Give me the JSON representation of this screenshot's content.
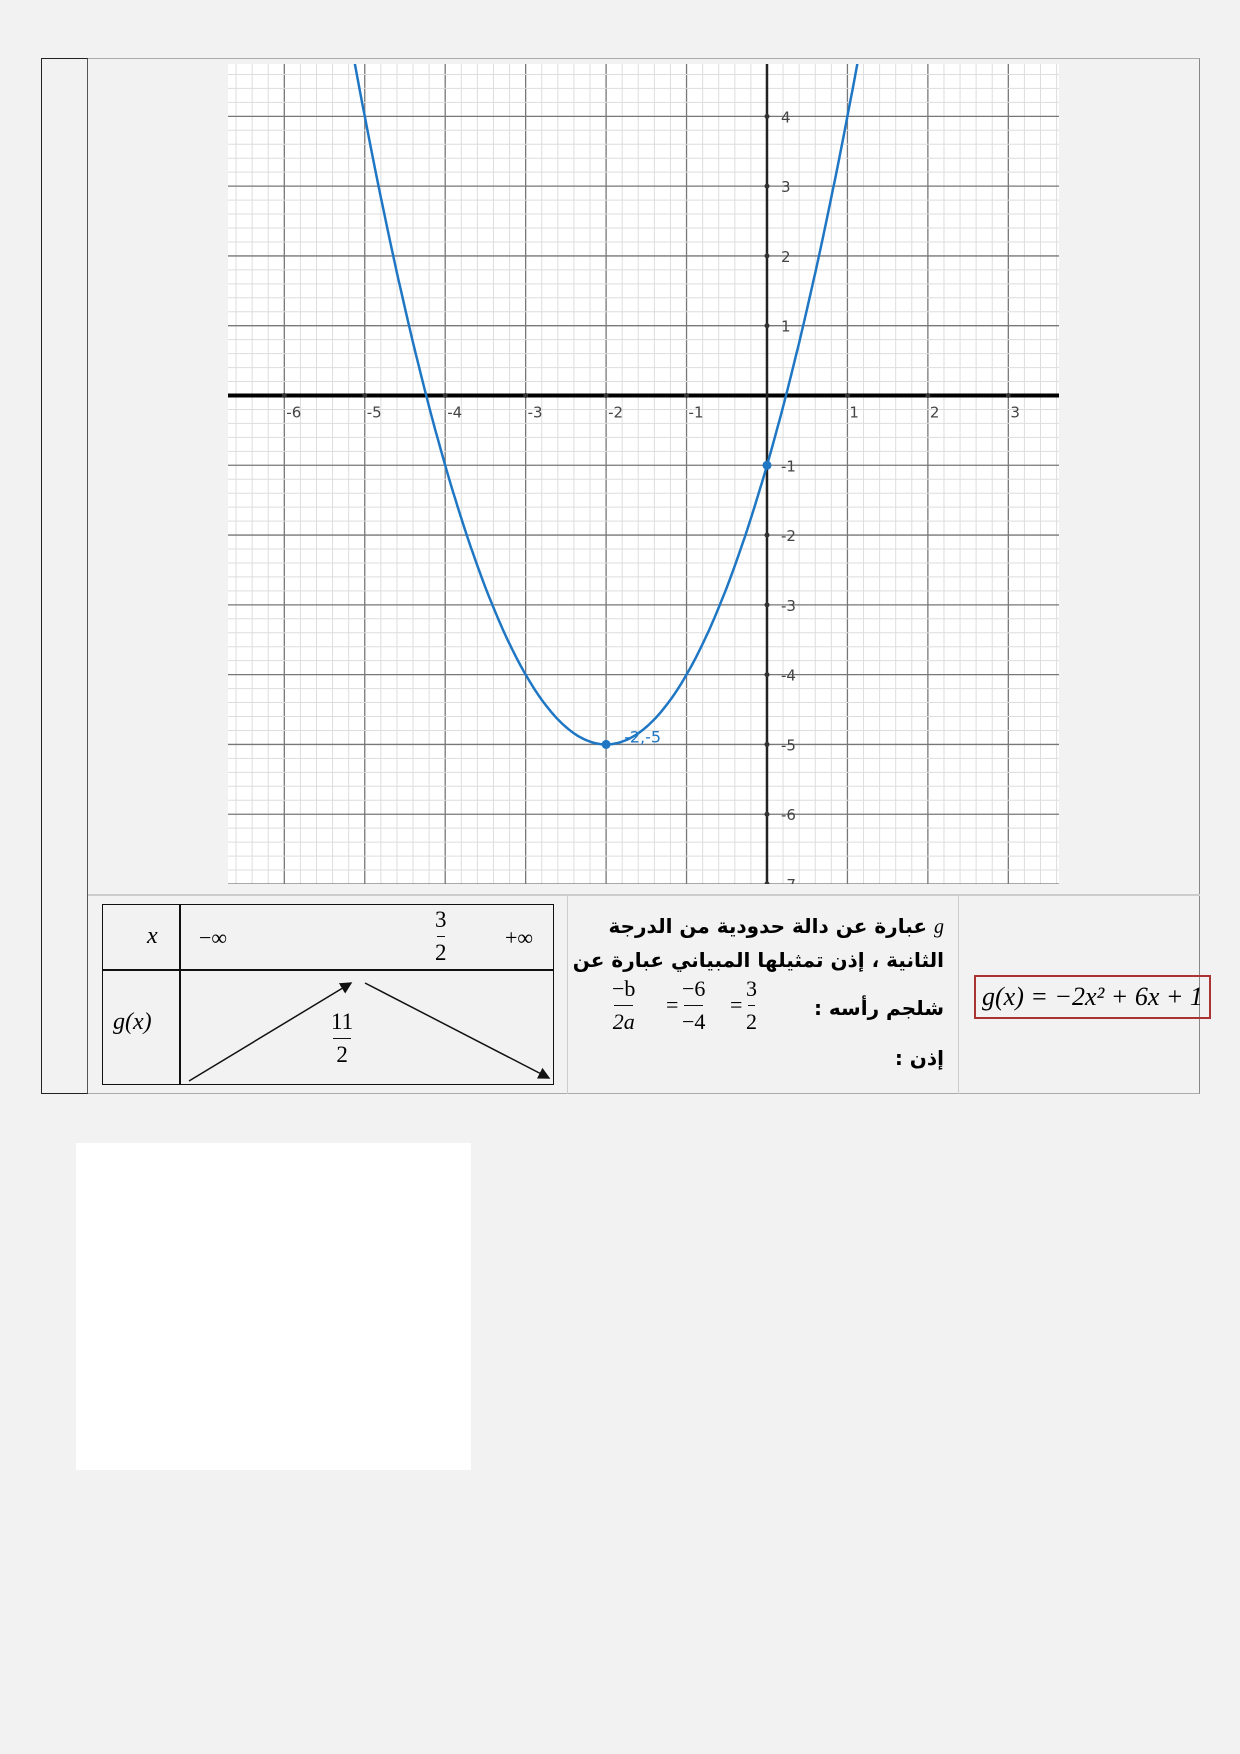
{
  "chart_data": {
    "type": "line",
    "function": "y = (x+2)^2 - 5",
    "xlim": [
      -6.7,
      3.63
    ],
    "ylim": [
      -7.0,
      4.75
    ],
    "x_ticks": [
      -6,
      -5,
      -4,
      -3,
      -2,
      -1,
      1,
      2,
      3
    ],
    "y_ticks": [
      4,
      3,
      2,
      1,
      -1,
      -2,
      -3,
      -4,
      -5,
      -6,
      -7
    ],
    "grid": true,
    "curve_color": "#1f77c4",
    "points": [
      {
        "x": -2,
        "y": -5,
        "label": "-2,-5"
      },
      {
        "x": 0,
        "y": -1,
        "label": ""
      }
    ]
  },
  "variation_table": {
    "x_label": "x",
    "gx_label": "g(x)",
    "minus_inf": "−∞",
    "plus_inf": "+∞",
    "critical_num": "3",
    "critical_den": "2",
    "max_num": "11",
    "max_den": "2"
  },
  "explanation": {
    "line1_var": "g",
    "line1": "عبارة عن دالة حدودية من الدرجة",
    "line2": "الثانية ، إذن تمثيلها المبياني عبارة عن",
    "line3": "شلجم رأسه :",
    "f1_num": "−b",
    "f1_den": "2a",
    "f2_num": "−6",
    "f2_den": "−4",
    "f3_num": "3",
    "f3_den": "2",
    "eq": "=",
    "line4": "إذن :"
  },
  "formula": "g(x) = −2x² + 6x + 1"
}
